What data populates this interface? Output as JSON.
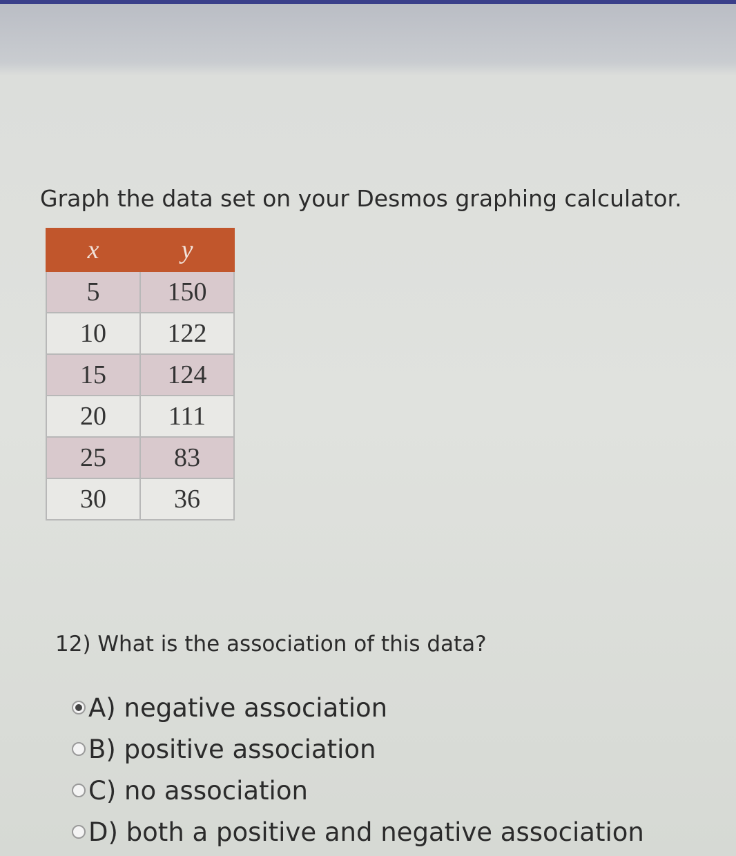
{
  "instruction": "Graph the data set on your Desmos graphing calculator.",
  "table": {
    "header": [
      "x",
      "y"
    ],
    "rows": [
      [
        "5",
        "150"
      ],
      [
        "10",
        "122"
      ],
      [
        "15",
        "124"
      ],
      [
        "20",
        "111"
      ],
      [
        "25",
        "83"
      ],
      [
        "30",
        "36"
      ]
    ]
  },
  "question": "12) What is the association of this data?",
  "options": [
    {
      "label": "A) negative association",
      "selected": true
    },
    {
      "label": "B) positive association",
      "selected": false
    },
    {
      "label": "C) no association",
      "selected": false
    },
    {
      "label": "D) both a positive and negative association",
      "selected": false
    }
  ]
}
